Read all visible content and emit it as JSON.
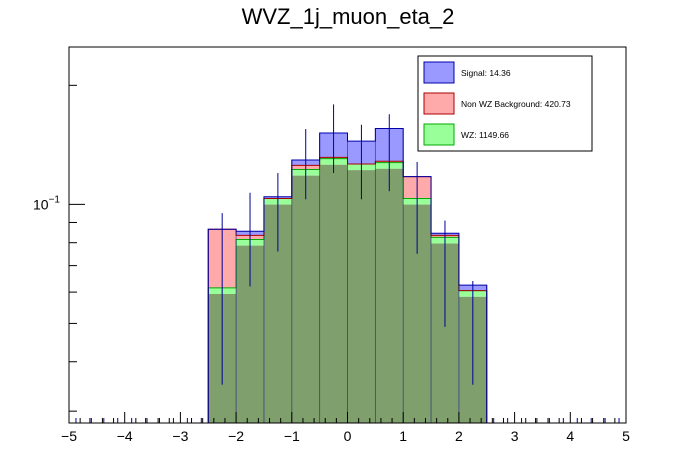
{
  "chart_data": {
    "type": "bar",
    "title": "WVZ_1j_muon_eta_2",
    "xlabel": "",
    "ylabel": "",
    "xlim": [
      -5,
      5
    ],
    "ylim": [
      0.028,
      0.25
    ],
    "yscale": "log",
    "x_ticks": [
      -5,
      -4,
      -3,
      -2,
      -1,
      0,
      1,
      2,
      3,
      4,
      5
    ],
    "x_tick_labels": [
      "−5",
      "−4",
      "−3",
      "−2",
      "−1",
      "0",
      "1",
      "2",
      "3",
      "4",
      "5"
    ],
    "y_tick_base": "10",
    "y_tick_exp": "−1",
    "y_tick_value": 0.1,
    "bin_edges": [
      -2.5,
      -2.0,
      -1.5,
      -1.0,
      -0.5,
      0.0,
      0.5,
      1.0,
      1.5,
      2.0,
      2.5
    ],
    "stack_order": [
      "WZ",
      "Non WZ Background",
      "Signal"
    ],
    "series": [
      {
        "name": "Signal",
        "legend_label": "Signal: 14.36",
        "color": "#9999ff",
        "edge_color": "#0000aa",
        "stacked_top": [
          0.0865,
          0.0855,
          0.1045,
          0.1295,
          0.1515,
          0.1445,
          0.1555,
          0.1175,
          0.0845,
          0.0625
        ]
      },
      {
        "name": "Non WZ Background",
        "legend_label": "Non WZ Background: 420.73",
        "color": "#ffaaaa",
        "edge_color": "#aa0000",
        "stacked_top": [
          0.0865,
          0.0835,
          0.1035,
          0.1255,
          0.1315,
          0.1265,
          0.1285,
          0.1175,
          0.0835,
          0.0605
        ]
      },
      {
        "name": "WZ",
        "legend_label": "WZ: 1149.66",
        "color": "#99ff99",
        "edge_color": "#00aa00",
        "stacked_top": [
          0.0615,
          0.0815,
          0.1035,
          0.1225,
          0.1305,
          0.1265,
          0.1275,
          0.1035,
          0.0825,
          0.0605
        ]
      }
    ],
    "overlap_color": "#7f9f6c",
    "data_points": {
      "x": [
        -2.25,
        -1.75,
        -1.25,
        -0.75,
        -0.25,
        0.25,
        0.75,
        1.25,
        1.75,
        2.25
      ],
      "y": [
        0.0615,
        0.0815,
        0.0955,
        0.1265,
        0.1455,
        0.1275,
        0.1345,
        0.0995,
        0.0675,
        0.0475
      ],
      "err_low": [
        0.0265,
        0.0195,
        0.0195,
        0.0235,
        0.0255,
        0.0245,
        0.0265,
        0.0245,
        0.0185,
        0.0125
      ],
      "err_high": [
        0.0335,
        0.0255,
        0.0245,
        0.0285,
        0.0335,
        0.0315,
        0.0345,
        0.0285,
        0.0235,
        0.0165
      ],
      "color": "#000099"
    },
    "legend_position": "top-right",
    "grid": false
  }
}
